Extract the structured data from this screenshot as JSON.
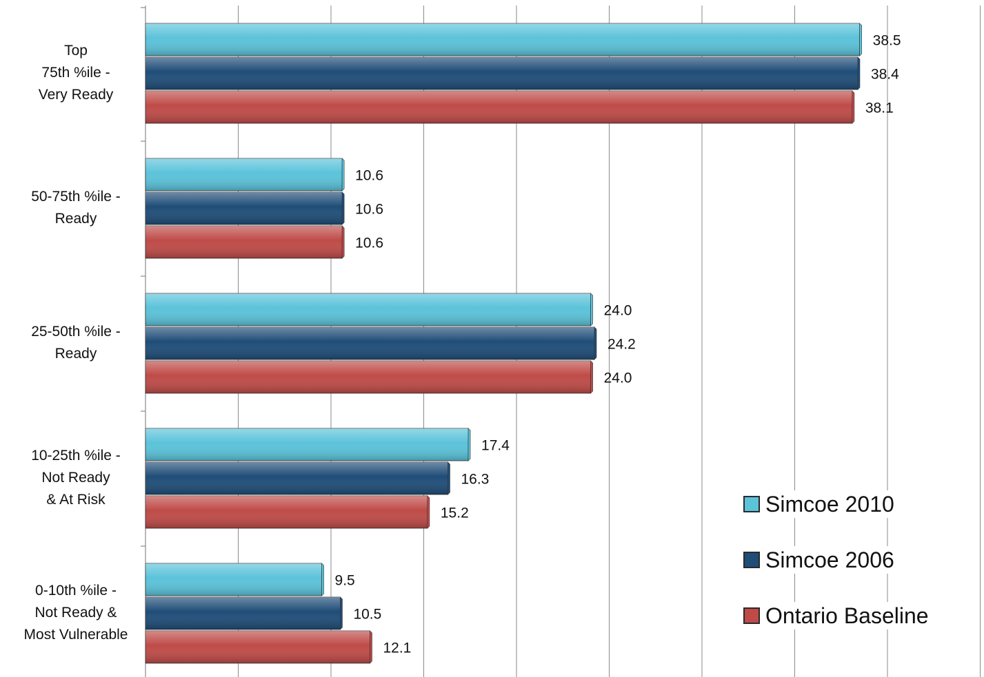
{
  "chart_data": {
    "type": "bar",
    "orientation": "horizontal",
    "categories": [
      [
        "Top",
        "75th %ile -",
        "Very Ready"
      ],
      [
        "50-75th %ile -",
        "Ready"
      ],
      [
        "25-50th %ile -",
        "Ready"
      ],
      [
        "10-25th %ile -",
        "Not Ready",
        "& At Risk"
      ],
      [
        "0-10th %ile -",
        "Not Ready &",
        "Most Vulnerable"
      ]
    ],
    "series": [
      {
        "name": "Simcoe 2010",
        "color": "#5bc3da",
        "values": [
          38.5,
          10.6,
          24.0,
          17.4,
          9.5
        ]
      },
      {
        "name": "Simcoe 2006",
        "color": "#1f4d78",
        "values": [
          38.4,
          10.6,
          24.2,
          16.3,
          10.5
        ]
      },
      {
        "name": "Ontario Baseline",
        "color": "#bf4b48",
        "values": [
          38.1,
          10.6,
          24.0,
          15.2,
          12.1
        ]
      }
    ],
    "data_labels": [
      [
        "38.5",
        "10.6",
        "24.0",
        "17.4",
        "9.5"
      ],
      [
        "38.4",
        "10.6",
        "24.2",
        "16.3",
        "10.5"
      ],
      [
        "38.1",
        "10.6",
        "24.0",
        "15.2",
        "12.1"
      ]
    ],
    "xlim": [
      0,
      45
    ],
    "grid": true,
    "legend_position": "bottom-right"
  }
}
